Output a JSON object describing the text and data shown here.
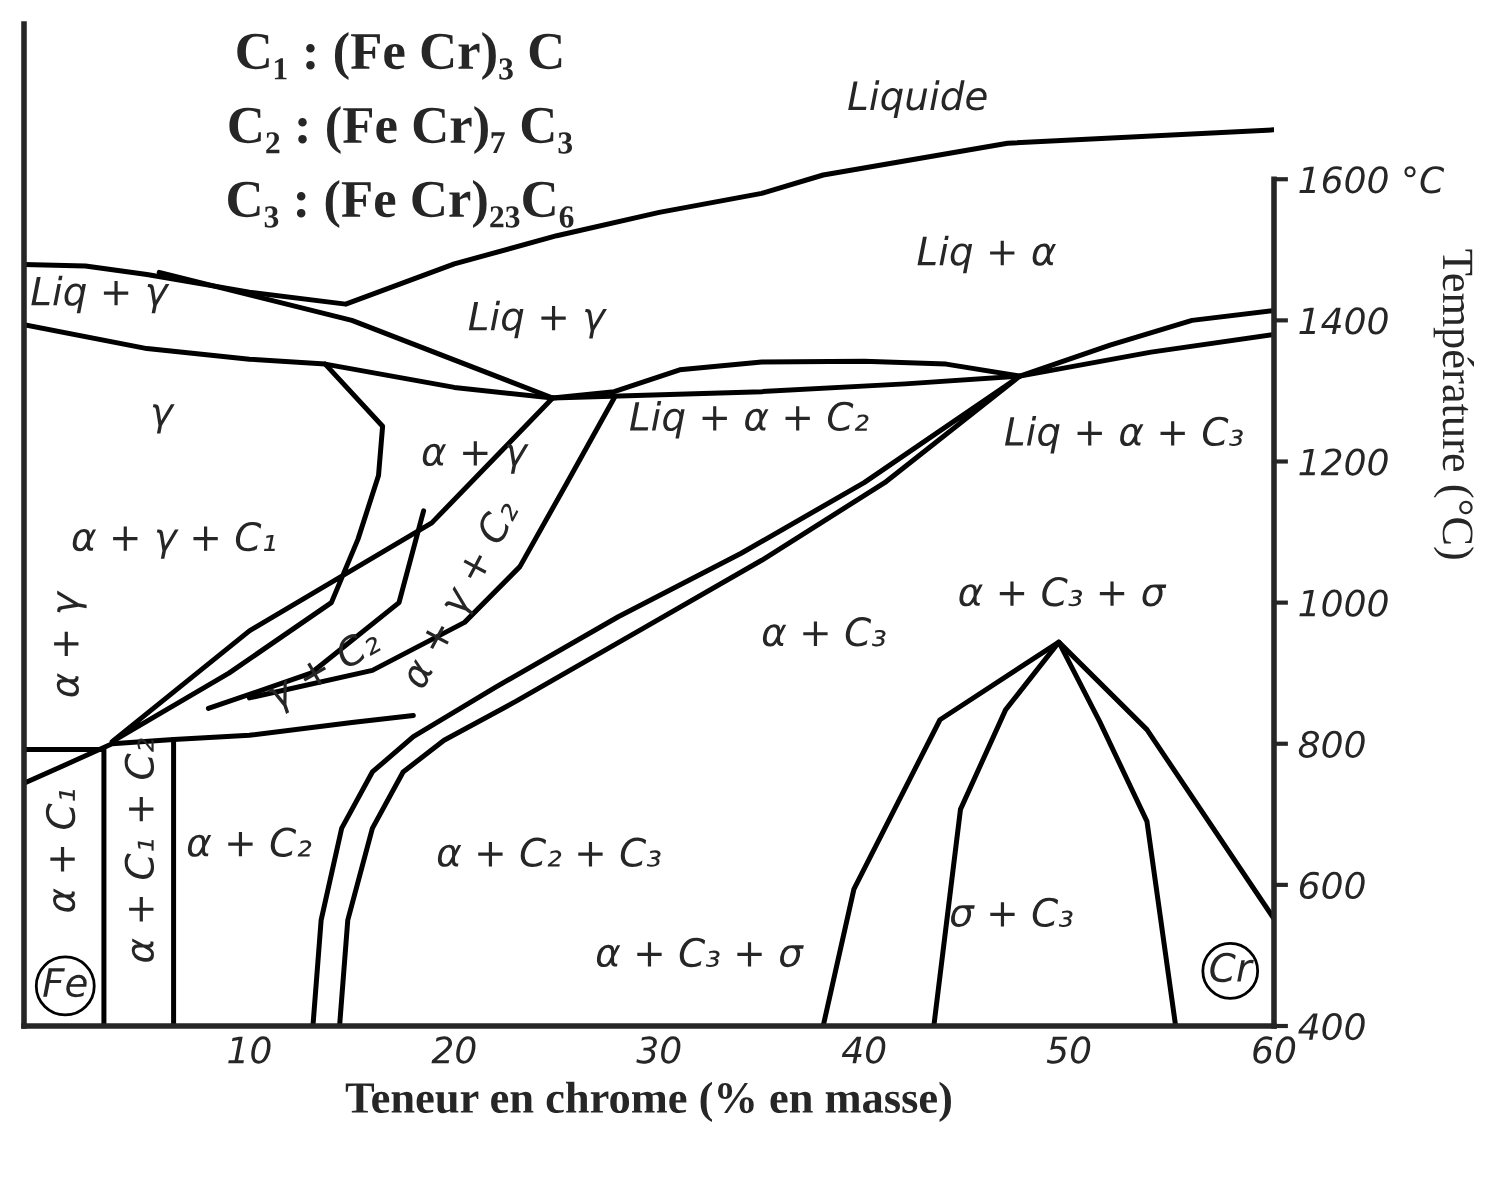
{
  "chart_data": {
    "type": "line",
    "xlabel": "Teneur en chrome (% en masse)",
    "ylabel": "Température (°C)",
    "xlim": [
      -1,
      60
    ],
    "ylim": [
      400,
      1820
    ],
    "xticks": [
      10,
      20,
      30,
      40,
      50,
      60
    ],
    "yticks": [
      400,
      600,
      800,
      1000,
      1200,
      1400,
      {
        "value": 1600,
        "label": "1600 °C"
      }
    ],
    "grid": false,
    "legend": false,
    "marker": "none",
    "line_style": "solid",
    "series": [
      {
        "color": "#000000",
        "x": [
          -1,
          2,
          5,
          10,
          14.7,
          20,
          25,
          30,
          35,
          38,
          47,
          60
        ],
        "values": [
          1479,
          1477,
          1465,
          1440,
          1423,
          1480,
          1520,
          1553,
          1580,
          1606,
          1651,
          1670
        ]
      },
      {
        "color": "#000000",
        "x": [
          5.6,
          15,
          24.8,
          27.8,
          31,
          35,
          40,
          44,
          47.6,
          52,
          56,
          60
        ],
        "values": [
          1468,
          1400,
          1290,
          1299,
          1330,
          1341,
          1342,
          1338,
          1321,
          1365,
          1400,
          1414
        ]
      },
      {
        "color": "#000000",
        "x": [
          -1,
          5,
          10,
          13.7,
          20,
          24.8,
          35,
          42,
          47.6,
          54,
          60
        ],
        "values": [
          1394,
          1360,
          1345,
          1338,
          1305,
          1290,
          1299,
          1310,
          1321,
          1355,
          1380
        ]
      },
      {
        "color": "#000000",
        "x": [
          13.7,
          16.5,
          16.3,
          15.3,
          14,
          9,
          3.3,
          10,
          18.9,
          24.8
        ],
        "values": [
          1338,
          1250,
          1180,
          1090,
          1000,
          900,
          803,
          960,
          1113,
          1290
        ]
      },
      {
        "color": "#000000",
        "x": [
          18.5,
          17.3,
          13,
          8
        ],
        "values": [
          1130,
          1000,
          900,
          850
        ]
      },
      {
        "color": "#000000",
        "x": [
          27.8,
          25.5,
          23.2,
          20.5,
          16,
          10
        ],
        "values": [
          1290,
          1170,
          1051,
          972,
          904,
          865
        ]
      },
      {
        "color": "#000000",
        "x": [
          13.1,
          13.5,
          14.5,
          16,
          18,
          22,
          28,
          34,
          40,
          47.6,
          41,
          35,
          29,
          23,
          19.5,
          17.5,
          16,
          14.8,
          14.4
        ],
        "values": [
          400,
          550,
          680,
          760,
          810,
          880,
          980,
          1070,
          1170,
          1321,
          1170,
          1060,
          960,
          860,
          805,
          760,
          680,
          550,
          400
        ]
      },
      {
        "color": "#000000",
        "x": [
          2.9,
          2.9,
          -1
        ],
        "values": [
          400,
          792,
          792
        ]
      },
      {
        "color": "#000000",
        "x": [
          -1,
          1,
          3.3,
          6.3,
          10,
          15,
          18
        ],
        "values": [
          744,
          770,
          800,
          806,
          812,
          830,
          840
        ]
      },
      {
        "color": "#000000",
        "x": [
          6.3,
          6.3
        ],
        "values": [
          400,
          806
        ]
      },
      {
        "color": "#000000",
        "x": [
          38,
          39.5,
          43.7,
          49.5,
          53.8,
          60
        ],
        "values": [
          400,
          594,
          834,
          944,
          820,
          552
        ]
      },
      {
        "color": "#000000",
        "x": [
          43.4,
          44.7,
          46.9,
          49.5,
          51.5,
          53.8,
          55.2
        ],
        "values": [
          400,
          707,
          848,
          944,
          831,
          690,
          400
        ]
      }
    ],
    "annotations": [
      "C₁ : (Fe Cr)₃ C",
      "C₂ : (Fe Cr)₇ C₃",
      "C₃ : (Fe Cr)₂₃C₆",
      "Liquide",
      "Liq + α",
      "Liq + γ",
      "Liq + γ",
      "γ",
      "α + γ",
      "Liq + α + C₂",
      "Liq + α + C₃",
      "α + γ + C₁",
      "γ + C₂",
      "α + γ + C₂",
      "α + γ",
      "α + C₁",
      "α + C₁ + C₂",
      "α + C₂",
      "α + C₂ + C₃",
      "α + C₃ + σ",
      "α + C₃",
      "α + C₃ + σ",
      "σ + C₃",
      "Fe",
      "Cr"
    ]
  }
}
